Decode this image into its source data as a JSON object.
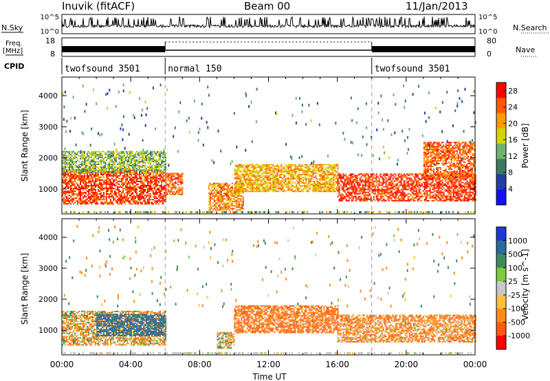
{
  "header": {
    "station": "Inuvik (fitACF)",
    "beam": "Beam 00",
    "date": "11/Jan/2013"
  },
  "strip_labels": {
    "nsky": "N.Sky",
    "freq": "Freq.",
    "freq_unit": "[MHz]",
    "cpid": "CPID",
    "nsearch": "N.Search",
    "nave": "Nave"
  },
  "strip_ticks": {
    "nsky_top": "10^5",
    "nsky_bottom": "10^0",
    "nsearch_top": "10^5",
    "nsearch_bottom": "10^0",
    "freq_top": "18",
    "freq_bottom": "8",
    "nave_top": "80",
    "nave_bottom": "0"
  },
  "cpid_segments": [
    {
      "start_hour": 0,
      "end_hour": 6,
      "label": "twofsound 3501"
    },
    {
      "start_hour": 6,
      "end_hour": 18,
      "label": "normal 150"
    },
    {
      "start_hour": 18,
      "end_hour": 24,
      "label": "twofsound 3501"
    }
  ],
  "chart_data": [
    {
      "type": "heatmap",
      "panel": "power",
      "xlabel": "",
      "ylabel": "Slant Range [km]",
      "xlim": [
        0,
        24
      ],
      "ylim": [
        200,
        4600
      ],
      "yticks": [
        "1000",
        "2000",
        "3000",
        "4000"
      ],
      "colorbar": {
        "label": "Power [dB]",
        "ticks": [
          "4",
          "8",
          "12",
          "16",
          "20",
          "24",
          "28"
        ],
        "range": [
          0,
          30
        ],
        "colors": [
          "#1010ff",
          "#2040a0",
          "#3b7a60",
          "#70b070",
          "#d4d400",
          "#ff9a00",
          "#ff5a00",
          "#ff0000"
        ]
      },
      "bands": [
        {
          "x": [
            0,
            6
          ],
          "y": [
            500,
            1600
          ],
          "value": 26
        },
        {
          "x": [
            0,
            6
          ],
          "y": [
            1500,
            2200
          ],
          "value": 14
        },
        {
          "x": [
            6,
            7
          ],
          "y": [
            800,
            1500
          ],
          "value": 24
        },
        {
          "x": [
            8.5,
            10.5
          ],
          "y": [
            300,
            1200
          ],
          "value": 22
        },
        {
          "x": [
            10,
            16
          ],
          "y": [
            900,
            1800
          ],
          "value": 20
        },
        {
          "x": [
            16,
            24
          ],
          "y": [
            600,
            1500
          ],
          "value": 26
        },
        {
          "x": [
            21,
            24
          ],
          "y": [
            1300,
            2500
          ],
          "value": 24
        }
      ]
    },
    {
      "type": "heatmap",
      "panel": "velocity",
      "xlabel": "Time UT",
      "ylabel": "Slant Range [km]",
      "xlim": [
        0,
        24
      ],
      "ylim": [
        200,
        4600
      ],
      "xticks": [
        "00:00",
        "04:00",
        "08:00",
        "12:00",
        "16:00",
        "20:00",
        "00:00"
      ],
      "yticks": [
        "1000",
        "2000",
        "3000",
        "4000"
      ],
      "colorbar": {
        "label": "Velocity [m s^-1]",
        "ticks": [
          "1000",
          "500",
          "100",
          "25",
          "-25",
          "-100",
          "-500",
          "-1000"
        ],
        "colors": [
          "#1a3ad0",
          "#2c6a9a",
          "#3f8a5a",
          "#7ecb3c",
          "#c8c8c8",
          "#ffc040",
          "#ff8c1a",
          "#ff5a10",
          "#ff0000"
        ]
      },
      "bands": [
        {
          "x": [
            0,
            6
          ],
          "y": [
            500,
            1600
          ],
          "value": -100
        },
        {
          "x": [
            2,
            6
          ],
          "y": [
            800,
            1500
          ],
          "value": 500
        },
        {
          "x": [
            10,
            16
          ],
          "y": [
            900,
            1800
          ],
          "value": -300
        },
        {
          "x": [
            16,
            24
          ],
          "y": [
            600,
            1500
          ],
          "value": -200
        },
        {
          "x": [
            9,
            10
          ],
          "y": [
            400,
            900
          ],
          "value": 0
        }
      ]
    }
  ]
}
